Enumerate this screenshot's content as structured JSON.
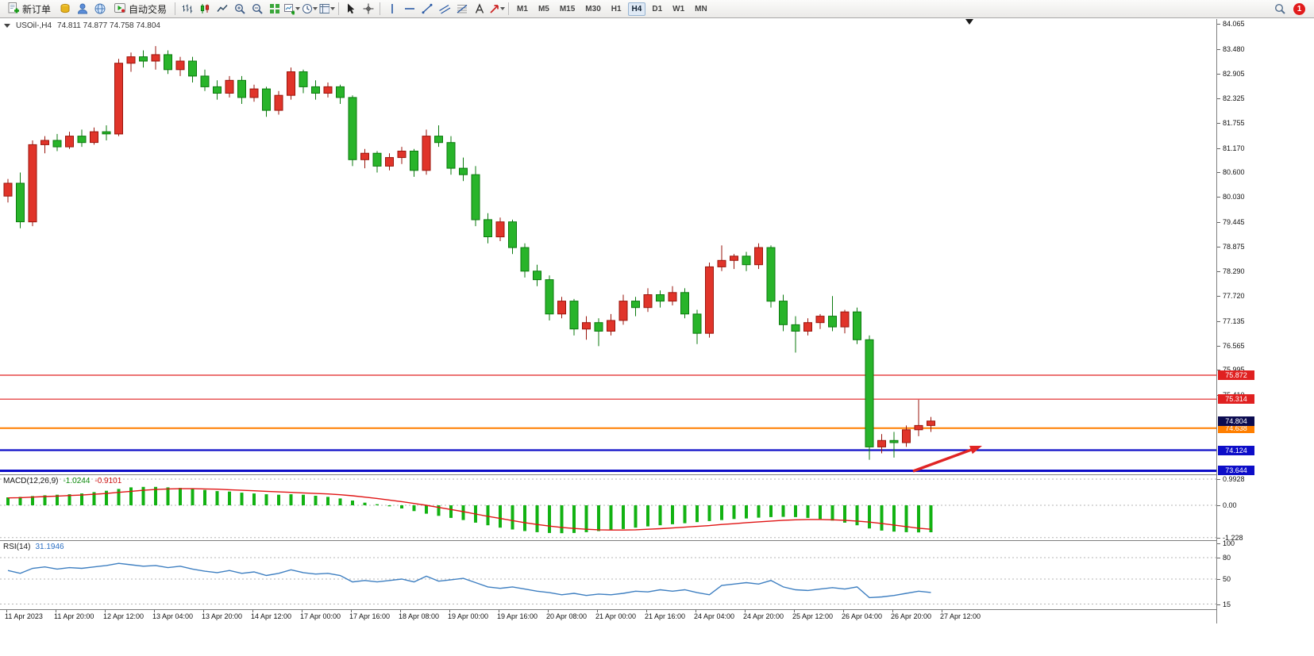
{
  "toolbar": {
    "new_order_label": "新订单",
    "autotrading_label": "自动交易",
    "timeframes": [
      "M1",
      "M5",
      "M15",
      "M30",
      "H1",
      "H4",
      "D1",
      "W1",
      "MN"
    ],
    "active_timeframe": "H4",
    "notification_count": "1"
  },
  "chart": {
    "header": {
      "symbol_period": "USOil-,H4",
      "ohlc": "74.811 74.877 74.758 74.804"
    },
    "price_axis_labels": [
      "84.065",
      "83.480",
      "82.905",
      "82.325",
      "81.755",
      "81.170",
      "80.600",
      "80.030",
      "79.445",
      "78.875",
      "78.290",
      "77.720",
      "77.135",
      "76.565",
      "75.995",
      "75.410"
    ],
    "current_price": {
      "label": "74.804",
      "price": 74.804,
      "color": "#0b0b50"
    },
    "levels": [
      {
        "label": "75.872",
        "price": 75.872,
        "color": "#e02020",
        "width": 1.2,
        "type": "resistance"
      },
      {
        "label": "75.314",
        "price": 75.314,
        "color": "#e02020",
        "width": 1.2,
        "type": "resistance"
      },
      {
        "label": "74.638",
        "price": 74.638,
        "color": "#ff7f00",
        "width": 2,
        "type": "pivot"
      },
      {
        "label": "74.124",
        "price": 74.124,
        "color": "#0d0dc8",
        "width": 2.2,
        "type": "support"
      },
      {
        "label": "73.644",
        "price": 73.644,
        "color": "#0d0dc8",
        "width": 3,
        "type": "support"
      }
    ]
  },
  "macd": {
    "label": "MACD(12,26,9)",
    "main_value": "-1.0244",
    "signal_value": "-0.9101",
    "scale": [
      "0.9928",
      "0.00",
      "-1.228"
    ]
  },
  "rsi": {
    "label": "RSI(14)",
    "value": "31.1946",
    "scale": [
      "100",
      "80",
      "50",
      "15"
    ]
  },
  "time_axis": {
    "labels": [
      "11 Apr 2023",
      "11 Apr 20:00",
      "12 Apr 12:00",
      "13 Apr 04:00",
      "13 Apr 20:00",
      "14 Apr 12:00",
      "17 Apr 00:00",
      "17 Apr 16:00",
      "18 Apr 08:00",
      "19 Apr 00:00",
      "19 Apr 16:00",
      "20 Apr 08:00",
      "21 Apr 00:00",
      "21 Apr 16:00",
      "24 Apr 04:00",
      "24 Apr 20:00",
      "25 Apr 12:00",
      "26 Apr 04:00",
      "26 Apr 20:00",
      "27 Apr 12:00"
    ]
  },
  "chart_data": {
    "type": "candlestick",
    "symbol": "USOil",
    "timeframe": "H4",
    "price_range": [
      73.56,
      84.18
    ],
    "up_color": "#e0342a",
    "up_stroke": "#9a150c",
    "down_color": "#28b42a",
    "down_stroke": "#0b7a0e",
    "candles": [
      [
        80.05,
        80.45,
        79.9,
        80.35
      ],
      [
        80.35,
        80.6,
        79.3,
        79.45
      ],
      [
        79.45,
        81.35,
        79.35,
        81.25
      ],
      [
        81.25,
        81.45,
        81.05,
        81.35
      ],
      [
        81.35,
        81.5,
        81.1,
        81.2
      ],
      [
        81.2,
        81.55,
        81.15,
        81.45
      ],
      [
        81.45,
        81.6,
        81.2,
        81.3
      ],
      [
        81.3,
        81.65,
        81.25,
        81.55
      ],
      [
        81.55,
        81.7,
        81.35,
        81.5
      ],
      [
        81.5,
        83.25,
        81.45,
        83.15
      ],
      [
        83.15,
        83.4,
        82.95,
        83.3
      ],
      [
        83.3,
        83.45,
        83.05,
        83.2
      ],
      [
        83.2,
        83.55,
        83.0,
        83.35
      ],
      [
        83.35,
        83.45,
        82.9,
        83.0
      ],
      [
        83.0,
        83.3,
        82.85,
        83.2
      ],
      [
        83.2,
        83.3,
        82.7,
        82.85
      ],
      [
        82.85,
        83.0,
        82.5,
        82.6
      ],
      [
        82.6,
        82.75,
        82.3,
        82.45
      ],
      [
        82.45,
        82.85,
        82.35,
        82.75
      ],
      [
        82.75,
        82.85,
        82.2,
        82.35
      ],
      [
        82.35,
        82.65,
        82.25,
        82.55
      ],
      [
        82.55,
        82.6,
        81.9,
        82.05
      ],
      [
        82.05,
        82.5,
        81.95,
        82.4
      ],
      [
        82.4,
        83.05,
        82.3,
        82.95
      ],
      [
        82.95,
        83.0,
        82.45,
        82.6
      ],
      [
        82.6,
        82.75,
        82.3,
        82.45
      ],
      [
        82.45,
        82.7,
        82.35,
        82.6
      ],
      [
        82.6,
        82.65,
        82.2,
        82.35
      ],
      [
        82.35,
        82.4,
        80.75,
        80.9
      ],
      [
        80.9,
        81.15,
        80.7,
        81.05
      ],
      [
        81.05,
        81.1,
        80.6,
        80.75
      ],
      [
        80.75,
        81.05,
        80.65,
        80.95
      ],
      [
        80.95,
        81.2,
        80.8,
        81.1
      ],
      [
        81.1,
        81.15,
        80.5,
        80.65
      ],
      [
        80.65,
        81.6,
        80.55,
        81.45
      ],
      [
        81.45,
        81.7,
        81.2,
        81.3
      ],
      [
        81.3,
        81.45,
        80.55,
        80.7
      ],
      [
        80.7,
        80.95,
        80.4,
        80.55
      ],
      [
        80.55,
        80.75,
        79.35,
        79.5
      ],
      [
        79.5,
        79.65,
        78.95,
        79.1
      ],
      [
        79.1,
        79.55,
        79.0,
        79.45
      ],
      [
        79.45,
        79.5,
        78.7,
        78.85
      ],
      [
        78.85,
        78.95,
        78.15,
        78.3
      ],
      [
        78.3,
        78.45,
        77.95,
        78.1
      ],
      [
        78.1,
        78.2,
        77.15,
        77.3
      ],
      [
        77.3,
        77.7,
        77.2,
        77.6
      ],
      [
        77.6,
        77.65,
        76.8,
        76.95
      ],
      [
        76.95,
        77.25,
        76.7,
        77.1
      ],
      [
        77.1,
        77.2,
        76.55,
        76.9
      ],
      [
        76.9,
        77.3,
        76.8,
        77.15
      ],
      [
        77.15,
        77.75,
        77.05,
        77.6
      ],
      [
        77.6,
        77.7,
        77.25,
        77.45
      ],
      [
        77.45,
        77.9,
        77.35,
        77.75
      ],
      [
        77.75,
        77.85,
        77.45,
        77.6
      ],
      [
        77.6,
        77.95,
        77.5,
        77.8
      ],
      [
        77.8,
        77.9,
        77.2,
        77.3
      ],
      [
        77.3,
        77.4,
        76.6,
        76.85
      ],
      [
        76.85,
        78.5,
        76.75,
        78.4
      ],
      [
        78.4,
        78.9,
        78.3,
        78.55
      ],
      [
        78.55,
        78.7,
        78.35,
        78.65
      ],
      [
        78.65,
        78.75,
        78.3,
        78.45
      ],
      [
        78.45,
        78.95,
        78.35,
        78.85
      ],
      [
        78.85,
        78.9,
        77.45,
        77.6
      ],
      [
        77.6,
        77.75,
        76.9,
        77.05
      ],
      [
        77.05,
        77.25,
        76.4,
        76.9
      ],
      [
        76.9,
        77.2,
        76.8,
        77.1
      ],
      [
        77.1,
        77.3,
        76.95,
        77.25
      ],
      [
        77.25,
        77.72,
        76.9,
        77.0
      ],
      [
        77.0,
        77.4,
        76.85,
        77.35
      ],
      [
        77.35,
        77.45,
        76.6,
        76.7
      ],
      [
        76.7,
        76.8,
        73.9,
        74.2
      ],
      [
        74.2,
        74.5,
        74.05,
        74.35
      ],
      [
        74.35,
        74.55,
        73.95,
        74.3
      ],
      [
        74.3,
        74.7,
        74.2,
        74.6
      ],
      [
        74.6,
        75.3,
        74.45,
        74.7
      ],
      [
        74.7,
        74.9,
        74.55,
        74.804
      ]
    ],
    "macd": {
      "color": "#12b212",
      "signal_color": "#e01414",
      "range": [
        -1.228,
        0.9928
      ],
      "histogram": [
        0.3,
        0.32,
        0.35,
        0.38,
        0.4,
        0.42,
        0.45,
        0.5,
        0.55,
        0.62,
        0.68,
        0.7,
        0.7,
        0.68,
        0.66,
        0.62,
        0.58,
        0.54,
        0.52,
        0.48,
        0.45,
        0.42,
        0.4,
        0.42,
        0.4,
        0.36,
        0.32,
        0.26,
        0.18,
        0.1,
        0.04,
        -0.04,
        -0.12,
        -0.22,
        -0.32,
        -0.4,
        -0.48,
        -0.56,
        -0.66,
        -0.76,
        -0.85,
        -0.92,
        -0.98,
        -1.02,
        -1.05,
        -1.06,
        -1.05,
        -1.02,
        -0.98,
        -0.94,
        -0.9,
        -0.85,
        -0.8,
        -0.76,
        -0.72,
        -0.68,
        -0.64,
        -0.6,
        -0.56,
        -0.52,
        -0.5,
        -0.47,
        -0.45,
        -0.44,
        -0.45,
        -0.48,
        -0.52,
        -0.58,
        -0.66,
        -0.76,
        -0.88,
        -0.96,
        -1.0,
        -1.02,
        -1.03,
        -1.0244
      ],
      "signal": [
        0.28,
        0.29,
        0.31,
        0.33,
        0.35,
        0.37,
        0.39,
        0.42,
        0.45,
        0.49,
        0.53,
        0.57,
        0.6,
        0.62,
        0.63,
        0.63,
        0.62,
        0.61,
        0.59,
        0.57,
        0.55,
        0.53,
        0.51,
        0.49,
        0.47,
        0.45,
        0.43,
        0.4,
        0.36,
        0.31,
        0.26,
        0.2,
        0.14,
        0.07,
        0.0,
        -0.08,
        -0.16,
        -0.24,
        -0.33,
        -0.42,
        -0.5,
        -0.58,
        -0.66,
        -0.73,
        -0.79,
        -0.84,
        -0.88,
        -0.91,
        -0.93,
        -0.94,
        -0.94,
        -0.93,
        -0.91,
        -0.89,
        -0.86,
        -0.83,
        -0.8,
        -0.77,
        -0.73,
        -0.7,
        -0.66,
        -0.63,
        -0.6,
        -0.57,
        -0.55,
        -0.54,
        -0.54,
        -0.55,
        -0.57,
        -0.6,
        -0.64,
        -0.69,
        -0.75,
        -0.81,
        -0.87,
        -0.9101
      ]
    },
    "rsi": {
      "color": "#3e7fc1",
      "levels": [
        80,
        50,
        15
      ],
      "values": [
        62,
        58,
        65,
        67,
        64,
        66,
        65,
        67,
        69,
        72,
        70,
        68,
        69,
        66,
        68,
        64,
        61,
        59,
        62,
        58,
        60,
        55,
        58,
        63,
        59,
        57,
        58,
        55,
        46,
        48,
        46,
        48,
        50,
        46,
        54,
        47,
        49,
        51,
        45,
        39,
        37,
        39,
        36,
        33,
        31,
        28,
        30,
        27,
        29,
        28,
        30,
        33,
        32,
        35,
        33,
        35,
        31,
        28,
        41,
        43,
        45,
        43,
        48,
        39,
        35,
        34,
        36,
        38,
        36,
        39,
        24,
        25,
        27,
        30,
        33,
        31.19
      ]
    },
    "annotations": [
      {
        "type": "arrow",
        "from": [
          1150,
          570
        ],
        "to": [
          1237,
          538
        ],
        "color": "#e02424"
      }
    ]
  }
}
